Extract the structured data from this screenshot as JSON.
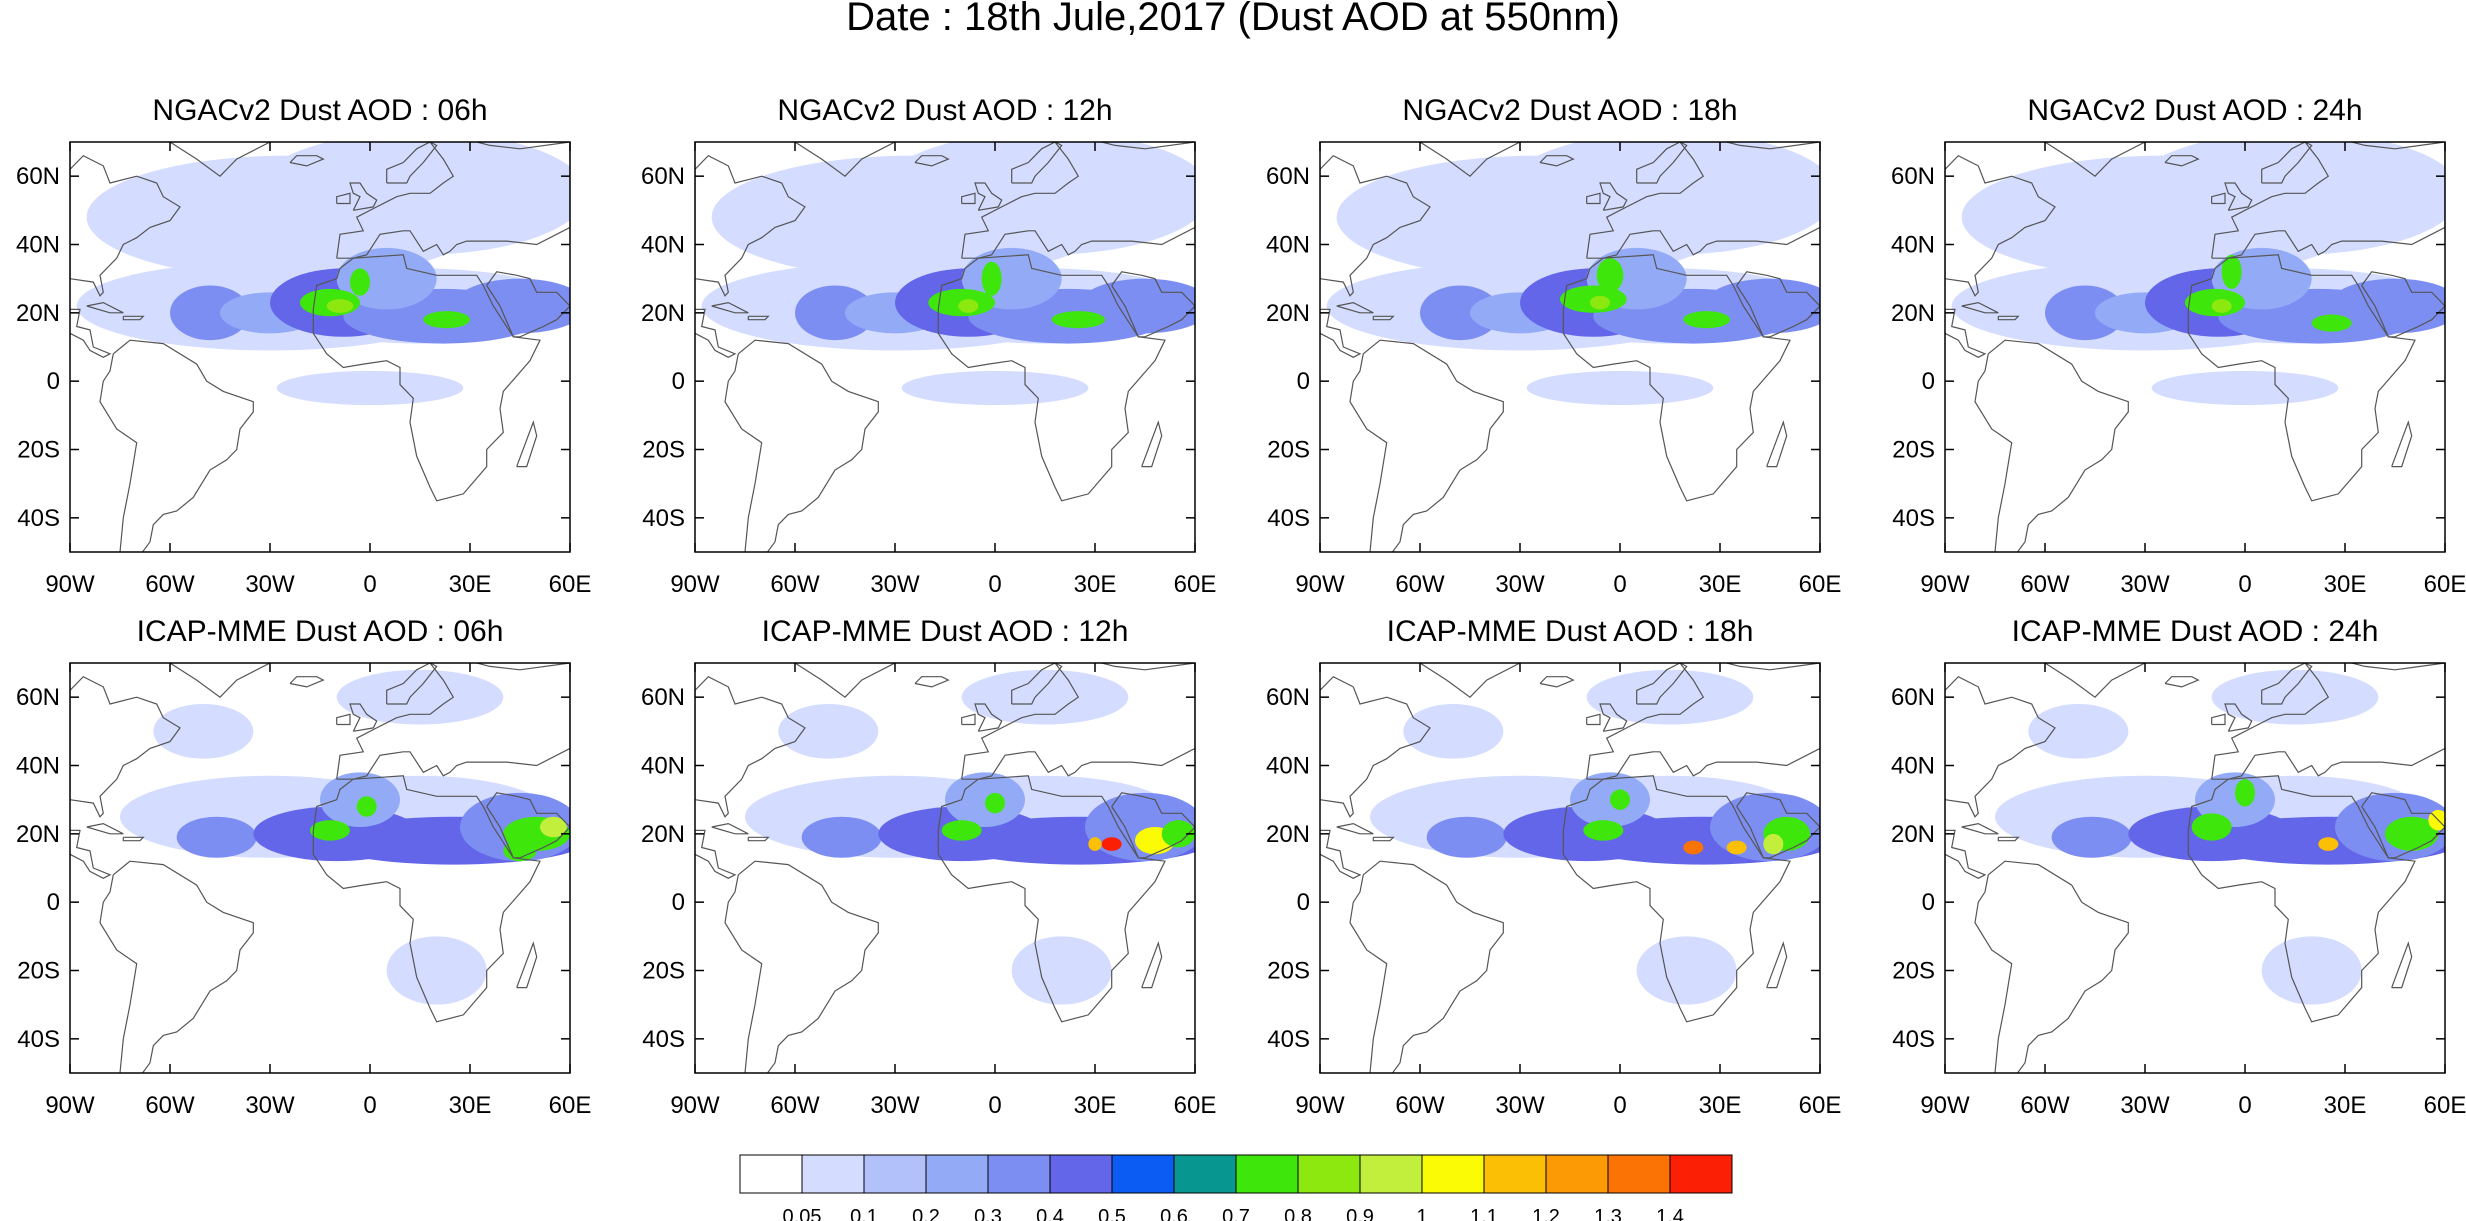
{
  "title": "Date : 18th Jule,2017 (Dust AOD at 550nm)",
  "axes": {
    "lat_ticks": [
      "60N",
      "40N",
      "20N",
      "0",
      "20S",
      "40S"
    ],
    "lat_values": [
      60,
      40,
      20,
      0,
      -20,
      -40
    ],
    "lon_ticks": [
      "90W",
      "60W",
      "30W",
      "0",
      "30E",
      "60E"
    ],
    "lon_values": [
      -90,
      -60,
      -30,
      0,
      30,
      60
    ],
    "lon_range": [
      -90,
      60
    ],
    "lat_range": [
      -50,
      70
    ]
  },
  "panels": [
    {
      "title": "NGACv2 Dust AOD : 06h",
      "model": "NGACv2",
      "hour": "06h"
    },
    {
      "title": "NGACv2 Dust AOD : 12h",
      "model": "NGACv2",
      "hour": "12h"
    },
    {
      "title": "NGACv2 Dust AOD : 18h",
      "model": "NGACv2",
      "hour": "18h"
    },
    {
      "title": "NGACv2 Dust AOD : 24h",
      "model": "NGACv2",
      "hour": "24h"
    },
    {
      "title": "ICAP-MME Dust AOD : 06h",
      "model": "ICAP-MME",
      "hour": "06h"
    },
    {
      "title": "ICAP-MME Dust AOD : 12h",
      "model": "ICAP-MME",
      "hour": "12h"
    },
    {
      "title": "ICAP-MME Dust AOD : 18h",
      "model": "ICAP-MME",
      "hour": "18h"
    },
    {
      "title": "ICAP-MME Dust AOD : 24h",
      "model": "ICAP-MME",
      "hour": "24h"
    }
  ],
  "colorbar": {
    "levels": [
      "0.05",
      "0.1",
      "0.2",
      "0.3",
      "0.4",
      "0.5",
      "0.6",
      "0.7",
      "0.8",
      "0.9",
      "1",
      "1.1",
      "1.2",
      "1.3",
      "1.4"
    ],
    "colors": [
      "#ffffff",
      "#d4dcff",
      "#b3c1fb",
      "#93abf7",
      "#7d8ef3",
      "#6366e8",
      "#0a5cf2",
      "#079690",
      "#3ee60c",
      "#8de80f",
      "#c2ee3c",
      "#fbfb05",
      "#fbc005",
      "#fb9a05",
      "#fb7305",
      "#fb1f05"
    ]
  },
  "colors": {
    "coastline": "#555555",
    "frame": "#000000"
  }
}
